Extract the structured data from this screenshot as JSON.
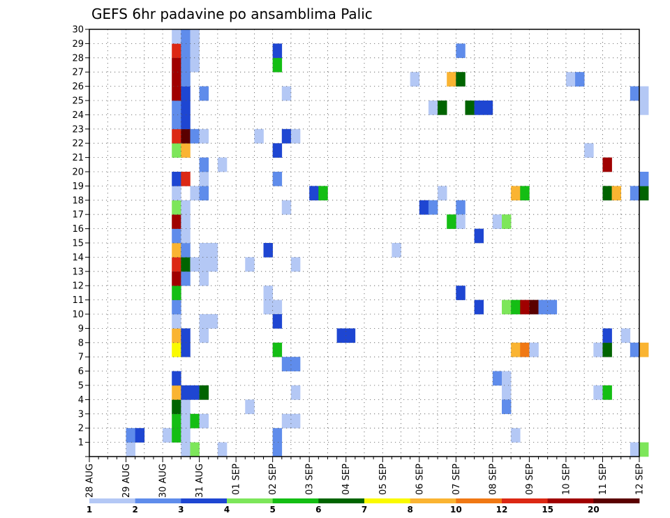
{
  "chart_data": {
    "type": "heatmap",
    "title": "GEFS 6hr padavine po ansamblima Palic",
    "xlabel": "",
    "ylabel": "",
    "x_tick_labels": [
      "28 AUG",
      "29 AUG",
      "30 AUG",
      "31 AUG",
      "01 SEP",
      "02 SEP",
      "03 SEP",
      "04 SEP",
      "05 SEP",
      "06 SEP",
      "07 SEP",
      "08 SEP",
      "09 SEP",
      "10 SEP",
      "11 SEP",
      "12 SEP"
    ],
    "x_range_days": [
      0,
      15
    ],
    "x_step_hours": 6,
    "y_tick_labels": [
      "1",
      "2",
      "3",
      "4",
      "5",
      "6",
      "7",
      "8",
      "9",
      "10",
      "11",
      "12",
      "13",
      "14",
      "15",
      "16",
      "17",
      "18",
      "19",
      "20",
      "21",
      "22",
      "23",
      "24",
      "25",
      "26",
      "27",
      "28",
      "29",
      "30"
    ],
    "y_range": [
      0,
      30
    ],
    "grid": true,
    "colorbar": {
      "placement": "bottom",
      "labels": [
        "1",
        "2",
        "3",
        "4",
        "5",
        "6",
        "7",
        "8",
        "10",
        "12",
        "15",
        "20"
      ],
      "colors": [
        "#b4c8f5",
        "#5f8ceb",
        "#1e46d2",
        "#7de65a",
        "#14be14",
        "#006400",
        "#fafa00",
        "#fab432",
        "#f07814",
        "#dc2814",
        "#a00000",
        "#5a0000"
      ]
    },
    "cells": [
      [
        4,
        0,
        1
      ],
      [
        4,
        1,
        2
      ],
      [
        5,
        1,
        3
      ],
      [
        8,
        1,
        1
      ],
      [
        9,
        1,
        5
      ],
      [
        9,
        2,
        5
      ],
      [
        9,
        3,
        6
      ],
      [
        9,
        4,
        8
      ],
      [
        9,
        5,
        3
      ],
      [
        9,
        7,
        7
      ],
      [
        9,
        8,
        8
      ],
      [
        9,
        9,
        1
      ],
      [
        9,
        10,
        2
      ],
      [
        9,
        11,
        5
      ],
      [
        9,
        12,
        11
      ],
      [
        9,
        13,
        10
      ],
      [
        9,
        14,
        8
      ],
      [
        9,
        15,
        2
      ],
      [
        9,
        16,
        11
      ],
      [
        9,
        17,
        4
      ],
      [
        9,
        18,
        1
      ],
      [
        9,
        19,
        3
      ],
      [
        9,
        21,
        4
      ],
      [
        9,
        22,
        10
      ],
      [
        9,
        23,
        2
      ],
      [
        9,
        24,
        2
      ],
      [
        9,
        25,
        11
      ],
      [
        9,
        26,
        11
      ],
      [
        9,
        27,
        11
      ],
      [
        9,
        28,
        10
      ],
      [
        9,
        29,
        1
      ],
      [
        10,
        0,
        1
      ],
      [
        10,
        1,
        1
      ],
      [
        10,
        2,
        1
      ],
      [
        10,
        3,
        1
      ],
      [
        10,
        4,
        3
      ],
      [
        10,
        7,
        3
      ],
      [
        10,
        8,
        3
      ],
      [
        10,
        12,
        2
      ],
      [
        10,
        13,
        6
      ],
      [
        10,
        14,
        2
      ],
      [
        10,
        15,
        1
      ],
      [
        10,
        16,
        1
      ],
      [
        10,
        17,
        1
      ],
      [
        10,
        19,
        10
      ],
      [
        10,
        21,
        8
      ],
      [
        10,
        22,
        12
      ],
      [
        10,
        23,
        3
      ],
      [
        10,
        24,
        3
      ],
      [
        10,
        25,
        3
      ],
      [
        10,
        26,
        2
      ],
      [
        10,
        27,
        2
      ],
      [
        10,
        28,
        2
      ],
      [
        10,
        29,
        2
      ],
      [
        11,
        0,
        4
      ],
      [
        11,
        2,
        5
      ],
      [
        11,
        4,
        3
      ],
      [
        12,
        4,
        6
      ],
      [
        11,
        18,
        1
      ],
      [
        11,
        13,
        1
      ],
      [
        12,
        18,
        2
      ],
      [
        12,
        19,
        1
      ],
      [
        12,
        20,
        2
      ],
      [
        11,
        22,
        2
      ],
      [
        12,
        22,
        1
      ],
      [
        11,
        27,
        1
      ],
      [
        11,
        28,
        1
      ],
      [
        11,
        29,
        1
      ],
      [
        12,
        25,
        2
      ],
      [
        12,
        13,
        1
      ],
      [
        13,
        13,
        1
      ],
      [
        12,
        14,
        1
      ],
      [
        13,
        14,
        1
      ],
      [
        12,
        12,
        1
      ],
      [
        12,
        9,
        1
      ],
      [
        13,
        9,
        1
      ],
      [
        12,
        8,
        1
      ],
      [
        12,
        2,
        1
      ],
      [
        14,
        0,
        1
      ],
      [
        14,
        20,
        1
      ],
      [
        17,
        3,
        1
      ],
      [
        17,
        13,
        1
      ],
      [
        18,
        22,
        1
      ],
      [
        19,
        14,
        3
      ],
      [
        19,
        10,
        1
      ],
      [
        20,
        10,
        1
      ],
      [
        19,
        11,
        1
      ],
      [
        20,
        0,
        2
      ],
      [
        20,
        1,
        2
      ],
      [
        20,
        9,
        3
      ],
      [
        20,
        7,
        5
      ],
      [
        20,
        19,
        2
      ],
      [
        20,
        21,
        3
      ],
      [
        20,
        27,
        5
      ],
      [
        20,
        28,
        3
      ],
      [
        21,
        6,
        2
      ],
      [
        22,
        6,
        2
      ],
      [
        21,
        2,
        1
      ],
      [
        22,
        2,
        1
      ],
      [
        21,
        17,
        1
      ],
      [
        21,
        25,
        1
      ],
      [
        21,
        22,
        3
      ],
      [
        22,
        22,
        1
      ],
      [
        22,
        4,
        1
      ],
      [
        22,
        13,
        1
      ],
      [
        24,
        18,
        3
      ],
      [
        25,
        18,
        5
      ],
      [
        27,
        8,
        3
      ],
      [
        28,
        8,
        3
      ],
      [
        33,
        14,
        1
      ],
      [
        35,
        26,
        1
      ],
      [
        36,
        17,
        3
      ],
      [
        37,
        17,
        2
      ],
      [
        37,
        24,
        1
      ],
      [
        38,
        24,
        6
      ],
      [
        39,
        26,
        8
      ],
      [
        38,
        18,
        1
      ],
      [
        40,
        17,
        2
      ],
      [
        40,
        16,
        1
      ],
      [
        39,
        16,
        5
      ],
      [
        40,
        26,
        6
      ],
      [
        40,
        11,
        3
      ],
      [
        40,
        28,
        2
      ],
      [
        41,
        24,
        6
      ],
      [
        42,
        24,
        3
      ],
      [
        43,
        24,
        3
      ],
      [
        42,
        15,
        3
      ],
      [
        42,
        10,
        3
      ],
      [
        44,
        5,
        2
      ],
      [
        44,
        16,
        1
      ],
      [
        45,
        16,
        4
      ],
      [
        45,
        4,
        1
      ],
      [
        45,
        5,
        1
      ],
      [
        45,
        3,
        2
      ],
      [
        46,
        1,
        1
      ],
      [
        45,
        10,
        4
      ],
      [
        46,
        10,
        5
      ],
      [
        47,
        10,
        11
      ],
      [
        48,
        10,
        12
      ],
      [
        49,
        10,
        2
      ],
      [
        50,
        10,
        2
      ],
      [
        46,
        7,
        8
      ],
      [
        47,
        7,
        9
      ],
      [
        48,
        7,
        1
      ],
      [
        46,
        18,
        8
      ],
      [
        47,
        18,
        5
      ],
      [
        52,
        26,
        1
      ],
      [
        53,
        26,
        2
      ],
      [
        54,
        21,
        1
      ],
      [
        55,
        4,
        1
      ],
      [
        56,
        4,
        5
      ],
      [
        55,
        7,
        1
      ],
      [
        56,
        7,
        6
      ],
      [
        56,
        8,
        3
      ],
      [
        56,
        18,
        6
      ],
      [
        57,
        18,
        8
      ],
      [
        56,
        20,
        11
      ],
      [
        58,
        8,
        1
      ],
      [
        59,
        18,
        2
      ],
      [
        59,
        7,
        2
      ],
      [
        60,
        7,
        8
      ],
      [
        59,
        25,
        2
      ],
      [
        60,
        25,
        1
      ],
      [
        60,
        24,
        1
      ],
      [
        60,
        18,
        6
      ],
      [
        60,
        19,
        2
      ],
      [
        59,
        0,
        1
      ],
      [
        60,
        0,
        4
      ]
    ]
  }
}
